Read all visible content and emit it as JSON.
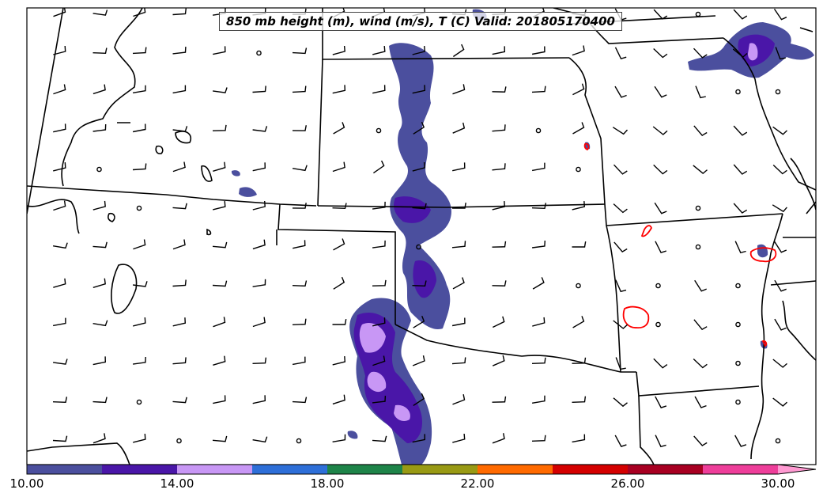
{
  "title": "850 mb height (m), wind (m/s), T (C) Valid: 201805170400",
  "colorbar": {
    "labels": [
      "10.00",
      "14.00",
      "18.00",
      "22.00",
      "26.00",
      "30.00"
    ],
    "colors": [
      "#4b4f9e",
      "#4a16a8",
      "#c897f5",
      "#2e6fd8",
      "#1e8449",
      "#999a14",
      "#ff6a00",
      "#d40000",
      "#a80022",
      "#ee3e9a",
      "#ff9ad2"
    ]
  },
  "colors": {
    "boundary": "#000000",
    "contour": "#ff0000",
    "precip_low": "#4b4f9e",
    "precip_mid": "#4a16a8",
    "precip_high": "#c897f5"
  }
}
